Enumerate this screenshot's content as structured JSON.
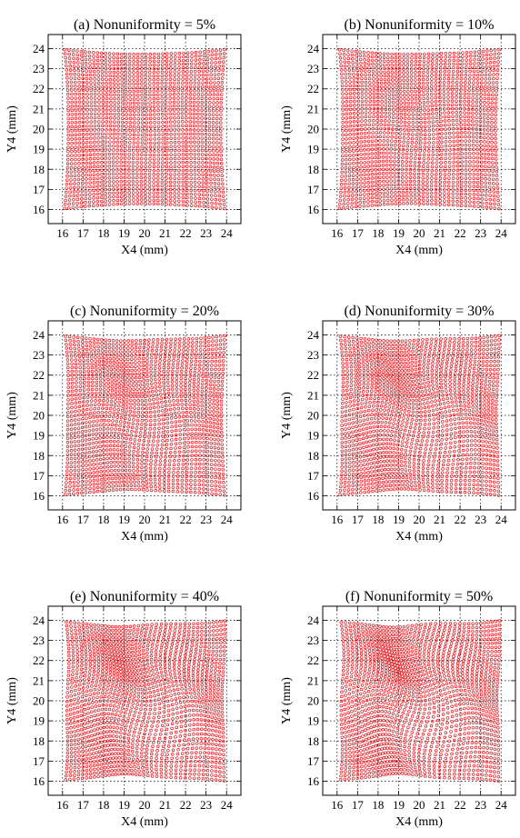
{
  "colors": {
    "points": "#e8141b",
    "axes": "#000000",
    "background": "#ffffff"
  },
  "chart_data": [
    {
      "type": "scatter",
      "title": "(a)  Nonuniformity =  5%",
      "xlabel": "X4 (mm)",
      "ylabel": "Y4 (mm)",
      "xlim": [
        15.3,
        24.7
      ],
      "ylim": [
        15.3,
        24.7
      ],
      "xticks": [
        16,
        17,
        18,
        19,
        20,
        21,
        22,
        23,
        24
      ],
      "yticks": [
        16,
        17,
        18,
        19,
        20,
        21,
        22,
        23,
        24
      ],
      "grid": true,
      "distortion": 0.05,
      "series": [
        {
          "marker": "open-circle",
          "color": "#e8141b",
          "grid_points_per_side": 40,
          "extent": {
            "x": [
              16.1,
              23.9
            ],
            "y": [
              16.05,
              23.95
            ]
          }
        }
      ]
    },
    {
      "type": "scatter",
      "title": "(b)  Nonuniformity = 10%",
      "xlabel": "X4 (mm)",
      "ylabel": "Y4 (mm)",
      "xlim": [
        15.3,
        24.7
      ],
      "ylim": [
        15.3,
        24.7
      ],
      "xticks": [
        16,
        17,
        18,
        19,
        20,
        21,
        22,
        23,
        24
      ],
      "yticks": [
        16,
        17,
        18,
        19,
        20,
        21,
        22,
        23,
        24
      ],
      "grid": true,
      "distortion": 0.1,
      "series": [
        {
          "marker": "open-circle",
          "color": "#e8141b",
          "grid_points_per_side": 40,
          "extent": {
            "x": [
              16.1,
              23.9
            ],
            "y": [
              16.05,
              23.95
            ]
          }
        }
      ]
    },
    {
      "type": "scatter",
      "title": "(c)  Nonuniformity = 20%",
      "xlabel": "X4 (mm)",
      "ylabel": "Y4 (mm)",
      "xlim": [
        15.3,
        24.7
      ],
      "ylim": [
        15.3,
        24.7
      ],
      "xticks": [
        16,
        17,
        18,
        19,
        20,
        21,
        22,
        23,
        24
      ],
      "yticks": [
        16,
        17,
        18,
        19,
        20,
        21,
        22,
        23,
        24
      ],
      "grid": true,
      "distortion": 0.2,
      "series": [
        {
          "marker": "open-circle",
          "color": "#e8141b",
          "grid_points_per_side": 40,
          "extent": {
            "x": [
              16.1,
              23.9
            ],
            "y": [
              16.05,
              23.95
            ]
          }
        }
      ]
    },
    {
      "type": "scatter",
      "title": "(d)  Nonuniformity = 30%",
      "xlabel": "X4 (mm)",
      "ylabel": "Y4 (mm)",
      "xlim": [
        15.3,
        24.7
      ],
      "ylim": [
        15.3,
        24.7
      ],
      "xticks": [
        16,
        17,
        18,
        19,
        20,
        21,
        22,
        23,
        24
      ],
      "yticks": [
        16,
        17,
        18,
        19,
        20,
        21,
        22,
        23,
        24
      ],
      "grid": true,
      "distortion": 0.3,
      "series": [
        {
          "marker": "open-circle",
          "color": "#e8141b",
          "grid_points_per_side": 40,
          "extent": {
            "x": [
              16.1,
              23.9
            ],
            "y": [
              16.05,
              23.95
            ]
          }
        }
      ]
    },
    {
      "type": "scatter",
      "title": "(e)  Nonuniformity = 40%",
      "xlabel": "X4 (mm)",
      "ylabel": "Y4 (mm)",
      "xlim": [
        15.3,
        24.7
      ],
      "ylim": [
        15.3,
        24.7
      ],
      "xticks": [
        16,
        17,
        18,
        19,
        20,
        21,
        22,
        23,
        24
      ],
      "yticks": [
        16,
        17,
        18,
        19,
        20,
        21,
        22,
        23,
        24
      ],
      "grid": true,
      "distortion": 0.4,
      "series": [
        {
          "marker": "open-circle",
          "color": "#e8141b",
          "grid_points_per_side": 40,
          "extent": {
            "x": [
              16.1,
              23.9
            ],
            "y": [
              16.05,
              23.95
            ]
          }
        }
      ]
    },
    {
      "type": "scatter",
      "title": "(f)  Nonuniformity = 50%",
      "xlabel": "X4 (mm)",
      "ylabel": "Y4 (mm)",
      "xlim": [
        15.3,
        24.7
      ],
      "ylim": [
        15.3,
        24.7
      ],
      "xticks": [
        16,
        17,
        18,
        19,
        20,
        21,
        22,
        23,
        24
      ],
      "yticks": [
        16,
        17,
        18,
        19,
        20,
        21,
        22,
        23,
        24
      ],
      "grid": true,
      "distortion": 0.5,
      "series": [
        {
          "marker": "open-circle",
          "color": "#e8141b",
          "grid_points_per_side": 40,
          "extent": {
            "x": [
              16.1,
              23.9
            ],
            "y": [
              16.05,
              23.95
            ]
          }
        }
      ]
    }
  ]
}
